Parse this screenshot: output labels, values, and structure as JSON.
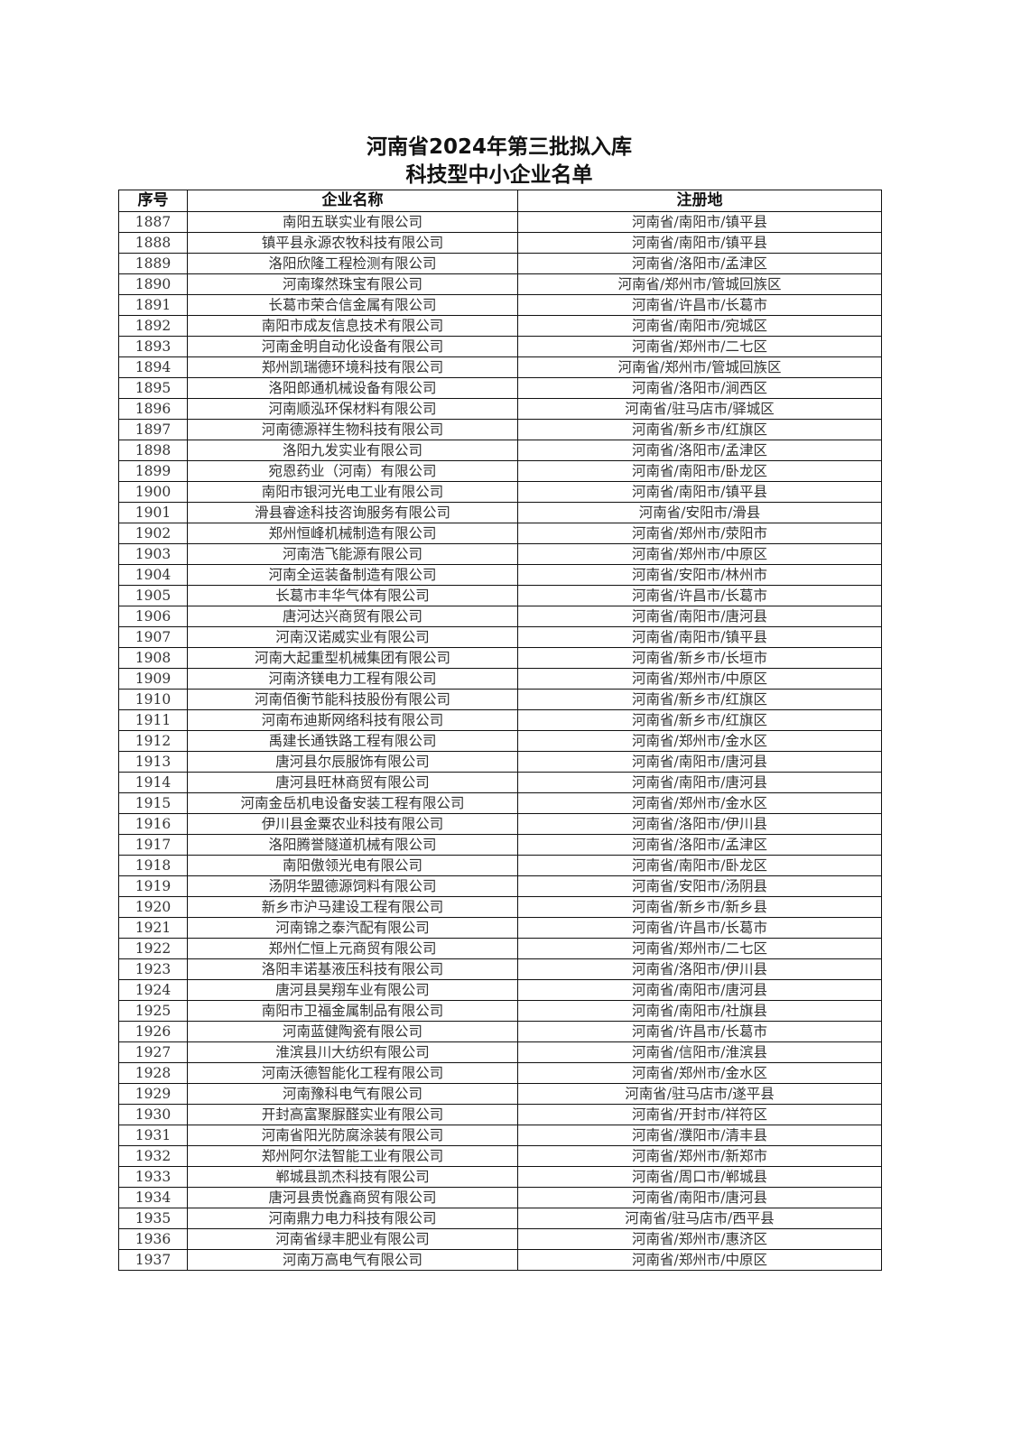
{
  "title": {
    "line1": "河南省2024年第三批拟入库",
    "line2": "科技型中小企业名单"
  },
  "table": {
    "headers": [
      "序号",
      "企业名称",
      "注册地"
    ],
    "rows": [
      [
        "1887",
        "南阳五联实业有限公司",
        "河南省/南阳市/镇平县"
      ],
      [
        "1888",
        "镇平县永源农牧科技有限公司",
        "河南省/南阳市/镇平县"
      ],
      [
        "1889",
        "洛阳欣隆工程检测有限公司",
        "河南省/洛阳市/孟津区"
      ],
      [
        "1890",
        "河南璨然珠宝有限公司",
        "河南省/郑州市/管城回族区"
      ],
      [
        "1891",
        "长葛市荣合信金属有限公司",
        "河南省/许昌市/长葛市"
      ],
      [
        "1892",
        "南阳市成友信息技术有限公司",
        "河南省/南阳市/宛城区"
      ],
      [
        "1893",
        "河南金明自动化设备有限公司",
        "河南省/郑州市/二七区"
      ],
      [
        "1894",
        "郑州凯瑞德环境科技有限公司",
        "河南省/郑州市/管城回族区"
      ],
      [
        "1895",
        "洛阳郎通机械设备有限公司",
        "河南省/洛阳市/涧西区"
      ],
      [
        "1896",
        "河南顺泓环保材料有限公司",
        "河南省/驻马店市/驿城区"
      ],
      [
        "1897",
        "河南德源祥生物科技有限公司",
        "河南省/新乡市/红旗区"
      ],
      [
        "1898",
        "洛阳九发实业有限公司",
        "河南省/洛阳市/孟津区"
      ],
      [
        "1899",
        "宛恩药业（河南）有限公司",
        "河南省/南阳市/卧龙区"
      ],
      [
        "1900",
        "南阳市银河光电工业有限公司",
        "河南省/南阳市/镇平县"
      ],
      [
        "1901",
        "滑县睿途科技咨询服务有限公司",
        "河南省/安阳市/滑县"
      ],
      [
        "1902",
        "郑州恒峰机械制造有限公司",
        "河南省/郑州市/荥阳市"
      ],
      [
        "1903",
        "河南浩飞能源有限公司",
        "河南省/郑州市/中原区"
      ],
      [
        "1904",
        "河南全运装备制造有限公司",
        "河南省/安阳市/林州市"
      ],
      [
        "1905",
        "长葛市丰华气体有限公司",
        "河南省/许昌市/长葛市"
      ],
      [
        "1906",
        "唐河达兴商贸有限公司",
        "河南省/南阳市/唐河县"
      ],
      [
        "1907",
        "河南汉诺威实业有限公司",
        "河南省/南阳市/镇平县"
      ],
      [
        "1908",
        "河南大起重型机械集团有限公司",
        "河南省/新乡市/长垣市"
      ],
      [
        "1909",
        "河南济镁电力工程有限公司",
        "河南省/郑州市/中原区"
      ],
      [
        "1910",
        "河南佰衡节能科技股份有限公司",
        "河南省/新乡市/红旗区"
      ],
      [
        "1911",
        "河南布迪斯网络科技有限公司",
        "河南省/新乡市/红旗区"
      ],
      [
        "1912",
        "禹建长通铁路工程有限公司",
        "河南省/郑州市/金水区"
      ],
      [
        "1913",
        "唐河县尔辰服饰有限公司",
        "河南省/南阳市/唐河县"
      ],
      [
        "1914",
        "唐河县旺林商贸有限公司",
        "河南省/南阳市/唐河县"
      ],
      [
        "1915",
        "河南金岳机电设备安装工程有限公司",
        "河南省/郑州市/金水区"
      ],
      [
        "1916",
        "伊川县金粟农业科技有限公司",
        "河南省/洛阳市/伊川县"
      ],
      [
        "1917",
        "洛阳腾誉隧道机械有限公司",
        "河南省/洛阳市/孟津区"
      ],
      [
        "1918",
        "南阳傲领光电有限公司",
        "河南省/南阳市/卧龙区"
      ],
      [
        "1919",
        "汤阴华盟德源饲料有限公司",
        "河南省/安阳市/汤阴县"
      ],
      [
        "1920",
        "新乡市沪马建设工程有限公司",
        "河南省/新乡市/新乡县"
      ],
      [
        "1921",
        "河南锦之泰汽配有限公司",
        "河南省/许昌市/长葛市"
      ],
      [
        "1922",
        "郑州仁恒上元商贸有限公司",
        "河南省/郑州市/二七区"
      ],
      [
        "1923",
        "洛阳丰诺基液压科技有限公司",
        "河南省/洛阳市/伊川县"
      ],
      [
        "1924",
        "唐河县昊翔车业有限公司",
        "河南省/南阳市/唐河县"
      ],
      [
        "1925",
        "南阳市卫福金属制品有限公司",
        "河南省/南阳市/社旗县"
      ],
      [
        "1926",
        "河南蓝健陶瓷有限公司",
        "河南省/许昌市/长葛市"
      ],
      [
        "1927",
        "淮滨县川大纺织有限公司",
        "河南省/信阳市/淮滨县"
      ],
      [
        "1928",
        "河南沃德智能化工程有限公司",
        "河南省/郑州市/金水区"
      ],
      [
        "1929",
        "河南豫科电气有限公司",
        "河南省/驻马店市/遂平县"
      ],
      [
        "1930",
        "开封高富聚脲醛实业有限公司",
        "河南省/开封市/祥符区"
      ],
      [
        "1931",
        "河南省阳光防腐涂装有限公司",
        "河南省/濮阳市/清丰县"
      ],
      [
        "1932",
        "郑州阿尔法智能工业有限公司",
        "河南省/郑州市/新郑市"
      ],
      [
        "1933",
        "郸城县凯杰科技有限公司",
        "河南省/周口市/郸城县"
      ],
      [
        "1934",
        "唐河县贵悦鑫商贸有限公司",
        "河南省/南阳市/唐河县"
      ],
      [
        "1935",
        "河南鼎力电力科技有限公司",
        "河南省/驻马店市/西平县"
      ],
      [
        "1936",
        "河南省绿丰肥业有限公司",
        "河南省/郑州市/惠济区"
      ],
      [
        "1937",
        "河南万高电气有限公司",
        "河南省/郑州市/中原区"
      ]
    ]
  }
}
